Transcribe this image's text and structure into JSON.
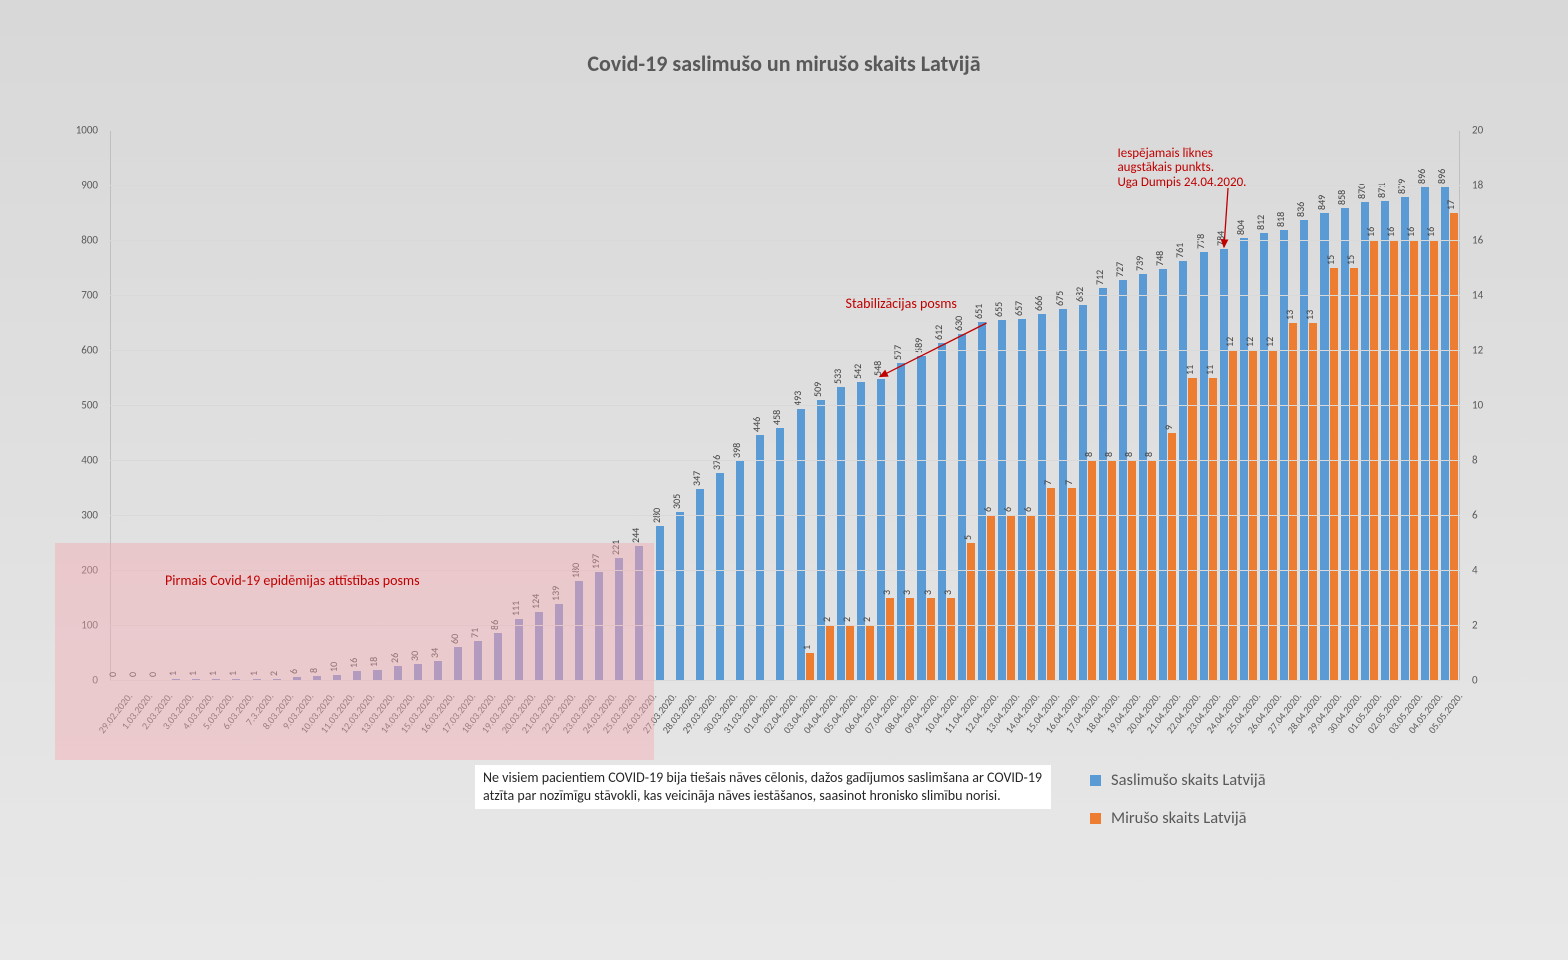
{
  "title": "Covid-19 saslimušo un mirušo skaits Latvijā",
  "colors": {
    "cases": "#5b9bd5",
    "cases_phase1": "#7e8fc9",
    "deaths": "#ed7d31",
    "grid": "#d9d9d9",
    "axis": "#bfbfbf",
    "text": "#595959",
    "annotation": "#c00000",
    "pink_overlay": "rgba(245,170,180,0.45)"
  },
  "y_left": {
    "min": 0,
    "max": 1000,
    "step": 100
  },
  "y_right": {
    "min": 0,
    "max": 20,
    "step": 2
  },
  "legend": {
    "cases": "Saslimušo skaits Latvijā",
    "deaths": "Mirušo skaits Latvijā"
  },
  "footnote": "Ne visiem pacientiem COVID-19 bija tiešais nāves cēlonis, dažos gadījumos saslimšana ar COVID-19 atzīta par nozīmīgu stāvokli, kas veicināja nāves iestāšanos, saasinot hronisko slimību norisi.",
  "annotations": {
    "phase1": "Pirmais Covid-19 epidēmijas attīstības posms",
    "stabil": "Stabilizācijas posms",
    "peak": "Iespējamais līknes\naugstākais punkts.\nUga Dumpis 24.04.2020."
  },
  "phase1_end_index": 27,
  "data": [
    {
      "date": "29.02.2020.",
      "cases": 0,
      "deaths": 0
    },
    {
      "date": "1.03.2020.",
      "cases": 0,
      "deaths": 0
    },
    {
      "date": "2.03.2020.",
      "cases": 0,
      "deaths": 0
    },
    {
      "date": "3.03.2020.",
      "cases": 1,
      "deaths": 0
    },
    {
      "date": "4.03.2020.",
      "cases": 1,
      "deaths": 0
    },
    {
      "date": "5.03.2020.",
      "cases": 1,
      "deaths": 0
    },
    {
      "date": "6.03.2020.",
      "cases": 1,
      "deaths": 0
    },
    {
      "date": "7.3.2020.",
      "cases": 1,
      "deaths": 0
    },
    {
      "date": "8.03.2020.",
      "cases": 2,
      "deaths": 0
    },
    {
      "date": "9.03.2020.",
      "cases": 6,
      "deaths": 0
    },
    {
      "date": "10.03.2020.",
      "cases": 8,
      "deaths": 0
    },
    {
      "date": "11.03.2020.",
      "cases": 10,
      "deaths": 0
    },
    {
      "date": "12.03.2020.",
      "cases": 16,
      "deaths": 0
    },
    {
      "date": "13.03.2020.",
      "cases": 18,
      "deaths": 0
    },
    {
      "date": "14.03.2020.",
      "cases": 26,
      "deaths": 0
    },
    {
      "date": "15.03.2020.",
      "cases": 30,
      "deaths": 0
    },
    {
      "date": "16.03.2020.",
      "cases": 34,
      "deaths": 0
    },
    {
      "date": "17.03.2020.",
      "cases": 60,
      "deaths": 0
    },
    {
      "date": "18.03.2020.",
      "cases": 71,
      "deaths": 0
    },
    {
      "date": "19.03.2020.",
      "cases": 86,
      "deaths": 0
    },
    {
      "date": "20.03.2020.",
      "cases": 111,
      "deaths": 0
    },
    {
      "date": "21.03.2020.",
      "cases": 124,
      "deaths": 0
    },
    {
      "date": "22.03.2020.",
      "cases": 139,
      "deaths": 0
    },
    {
      "date": "23.03.2020.",
      "cases": 180,
      "deaths": 0
    },
    {
      "date": "24.03.2020.",
      "cases": 197,
      "deaths": 0
    },
    {
      "date": "25.03.2020.",
      "cases": 221,
      "deaths": 0
    },
    {
      "date": "26.03.2020.",
      "cases": 244,
      "deaths": 0
    },
    {
      "date": "27.03.2020.",
      "cases": 280,
      "deaths": 0
    },
    {
      "date": "28.03.2020.",
      "cases": 305,
      "deaths": 0
    },
    {
      "date": "29.03.2020.",
      "cases": 347,
      "deaths": 0
    },
    {
      "date": "30.03.2020.",
      "cases": 376,
      "deaths": 0
    },
    {
      "date": "31.03.2020.",
      "cases": 398,
      "deaths": 0
    },
    {
      "date": "01.04.2020.",
      "cases": 446,
      "deaths": 0
    },
    {
      "date": "02.04.2020.",
      "cases": 458,
      "deaths": 0
    },
    {
      "date": "03.04.2020.",
      "cases": 493,
      "deaths": 1
    },
    {
      "date": "04.04.2020.",
      "cases": 509,
      "deaths": 2
    },
    {
      "date": "05.04.2020.",
      "cases": 533,
      "deaths": 2
    },
    {
      "date": "06.04.2020.",
      "cases": 542,
      "deaths": 2
    },
    {
      "date": "07.04.2020.",
      "cases": 548,
      "deaths": 3
    },
    {
      "date": "08.04.2020.",
      "cases": 577,
      "deaths": 3
    },
    {
      "date": "09.04.2020.",
      "cases": 589,
      "deaths": 3
    },
    {
      "date": "10.04.2020.",
      "cases": 612,
      "deaths": 3
    },
    {
      "date": "11.04.2020.",
      "cases": 630,
      "deaths": 5
    },
    {
      "date": "12.04.2020.",
      "cases": 651,
      "deaths": 6
    },
    {
      "date": "13.04.2020.",
      "cases": 655,
      "deaths": 6
    },
    {
      "date": "14.04.2020.",
      "cases": 657,
      "deaths": 6
    },
    {
      "date": "15.04.2020.",
      "cases": 666,
      "deaths": 7
    },
    {
      "date": "16.04.2020.",
      "cases": 675,
      "deaths": 7
    },
    {
      "date": "17.04.2020.",
      "cases": 682,
      "deaths": 8
    },
    {
      "date": "18.04.2020.",
      "cases": 712,
      "deaths": 8
    },
    {
      "date": "19.04.2020.",
      "cases": 727,
      "deaths": 8
    },
    {
      "date": "20.04.2020.",
      "cases": 739,
      "deaths": 8
    },
    {
      "date": "21.04.2020.",
      "cases": 748,
      "deaths": 9
    },
    {
      "date": "22.04.2020.",
      "cases": 761,
      "deaths": 11
    },
    {
      "date": "23.04.2020.",
      "cases": 778,
      "deaths": 11
    },
    {
      "date": "24.04.2020.",
      "cases": 784,
      "deaths": 12
    },
    {
      "date": "25.04.2020.",
      "cases": 804,
      "deaths": 12
    },
    {
      "date": "26.04.2020.",
      "cases": 812,
      "deaths": 12
    },
    {
      "date": "27.04.2020.",
      "cases": 818,
      "deaths": 13
    },
    {
      "date": "28.04.2020.",
      "cases": 836,
      "deaths": 13
    },
    {
      "date": "29.04.2020.",
      "cases": 849,
      "deaths": 15
    },
    {
      "date": "30.04.2020.",
      "cases": 858,
      "deaths": 15
    },
    {
      "date": "01.05.2020.",
      "cases": 870,
      "deaths": 16
    },
    {
      "date": "02.05.2020.",
      "cases": 871,
      "deaths": 16
    },
    {
      "date": "03.05.2020.",
      "cases": 879,
      "deaths": 16
    },
    {
      "date": "04.05.2020.",
      "cases": 896,
      "deaths": 16
    },
    {
      "date": "05.05.2020.",
      "cases": 896,
      "deaths": 17
    }
  ]
}
